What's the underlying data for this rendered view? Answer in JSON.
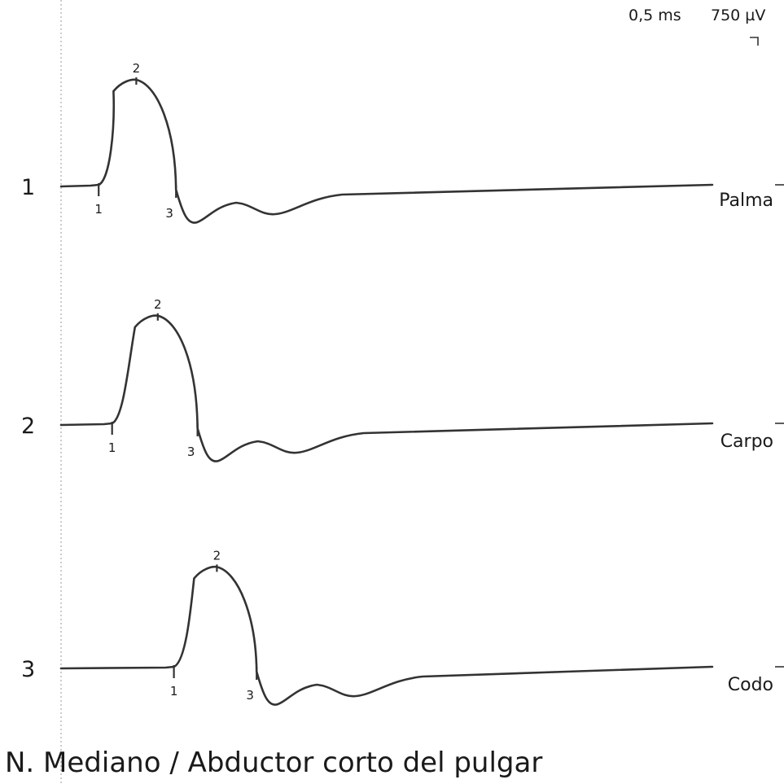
{
  "title": "N. Mediano / Abductor corto del pulgar",
  "scale": {
    "time": "0,5 ms",
    "amplitude": "750 µV"
  },
  "chart_data": {
    "type": "line",
    "title": "N. Mediano / Abductor corto del pulgar",
    "units": {
      "x": "ms",
      "y": "µV"
    },
    "x_per_division": 0.5,
    "y_per_division": 750,
    "traces": [
      {
        "number": "1",
        "site": "Palma",
        "markers": [
          {
            "label": "1",
            "t": 0.7,
            "amp": 0
          },
          {
            "label": "2",
            "t": 1.4,
            "amp": 2050
          },
          {
            "label": "3",
            "t": 2.2,
            "amp": -200
          }
        ]
      },
      {
        "number": "2",
        "site": "Carpo",
        "markers": [
          {
            "label": "1",
            "t": 0.95,
            "amp": 0
          },
          {
            "label": "2",
            "t": 1.8,
            "amp": 2100
          },
          {
            "label": "3",
            "t": 2.6,
            "amp": -200
          }
        ]
      },
      {
        "number": "3",
        "site": "Codo",
        "markers": [
          {
            "label": "1",
            "t": 2.1,
            "amp": 0
          },
          {
            "label": "2",
            "t": 2.9,
            "amp": 1950
          },
          {
            "label": "3",
            "t": 3.7,
            "amp": -200
          }
        ]
      }
    ]
  }
}
